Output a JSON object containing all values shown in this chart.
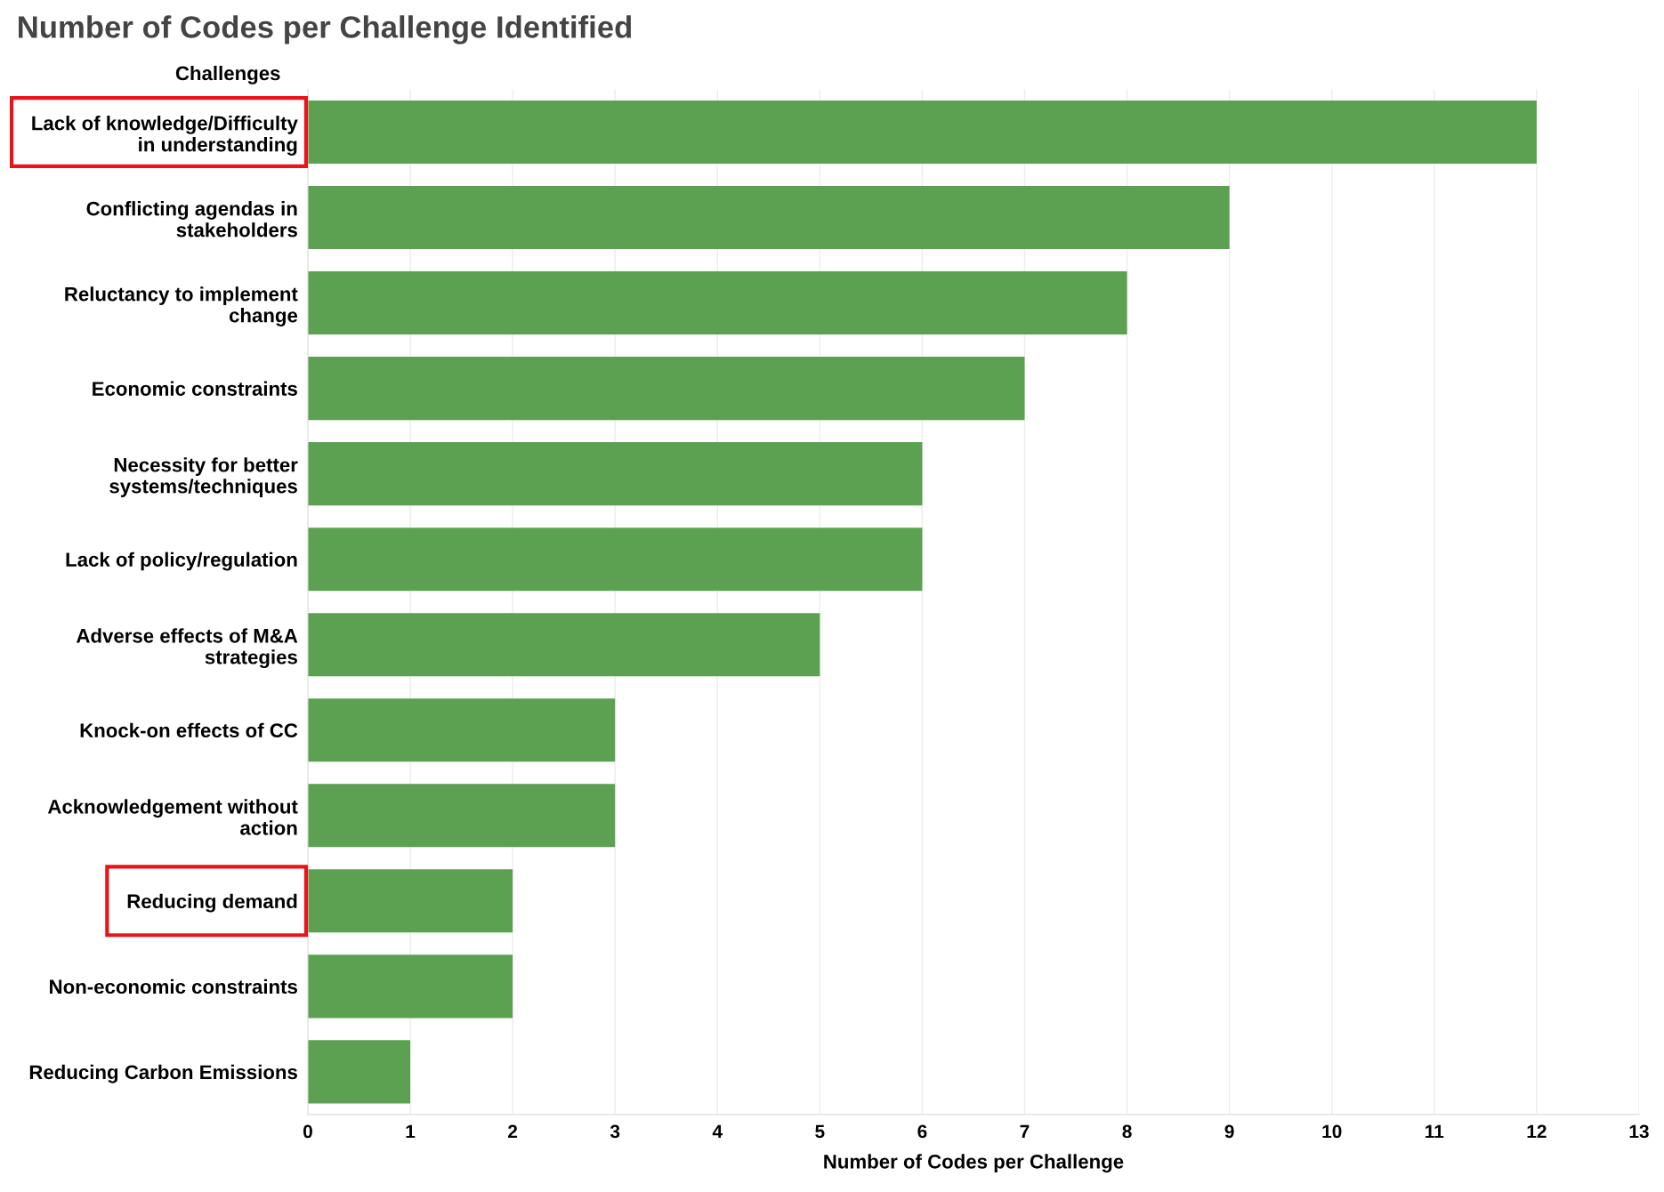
{
  "chart_data": {
    "type": "bar",
    "orientation": "horizontal",
    "title": "Number of Codes per Challenge Identified",
    "ylabel": "Challenges",
    "xlabel": "Number of Codes per Challenge",
    "categories": [
      "Lack of knowledge/Difficulty in understanding",
      "Conflicting agendas in stakeholders",
      "Reluctancy to implement change",
      "Economic constraints",
      "Necessity for better systems/techniques",
      "Lack of policy/regulation",
      "Adverse effects of M&A strategies",
      "Knock-on effects of CC",
      "Acknowledgement without action",
      "Reducing demand",
      "Non-economic constraints",
      "Reducing Carbon Emissions"
    ],
    "values": [
      12,
      9,
      8,
      7,
      6,
      6,
      5,
      3,
      3,
      2,
      2,
      1
    ],
    "color": "#5ba151",
    "xlim": [
      0,
      13
    ],
    "xticks": [
      0,
      1,
      2,
      3,
      4,
      5,
      6,
      7,
      8,
      9,
      10,
      11,
      12,
      13
    ],
    "grid": "x",
    "legend": false
  }
}
